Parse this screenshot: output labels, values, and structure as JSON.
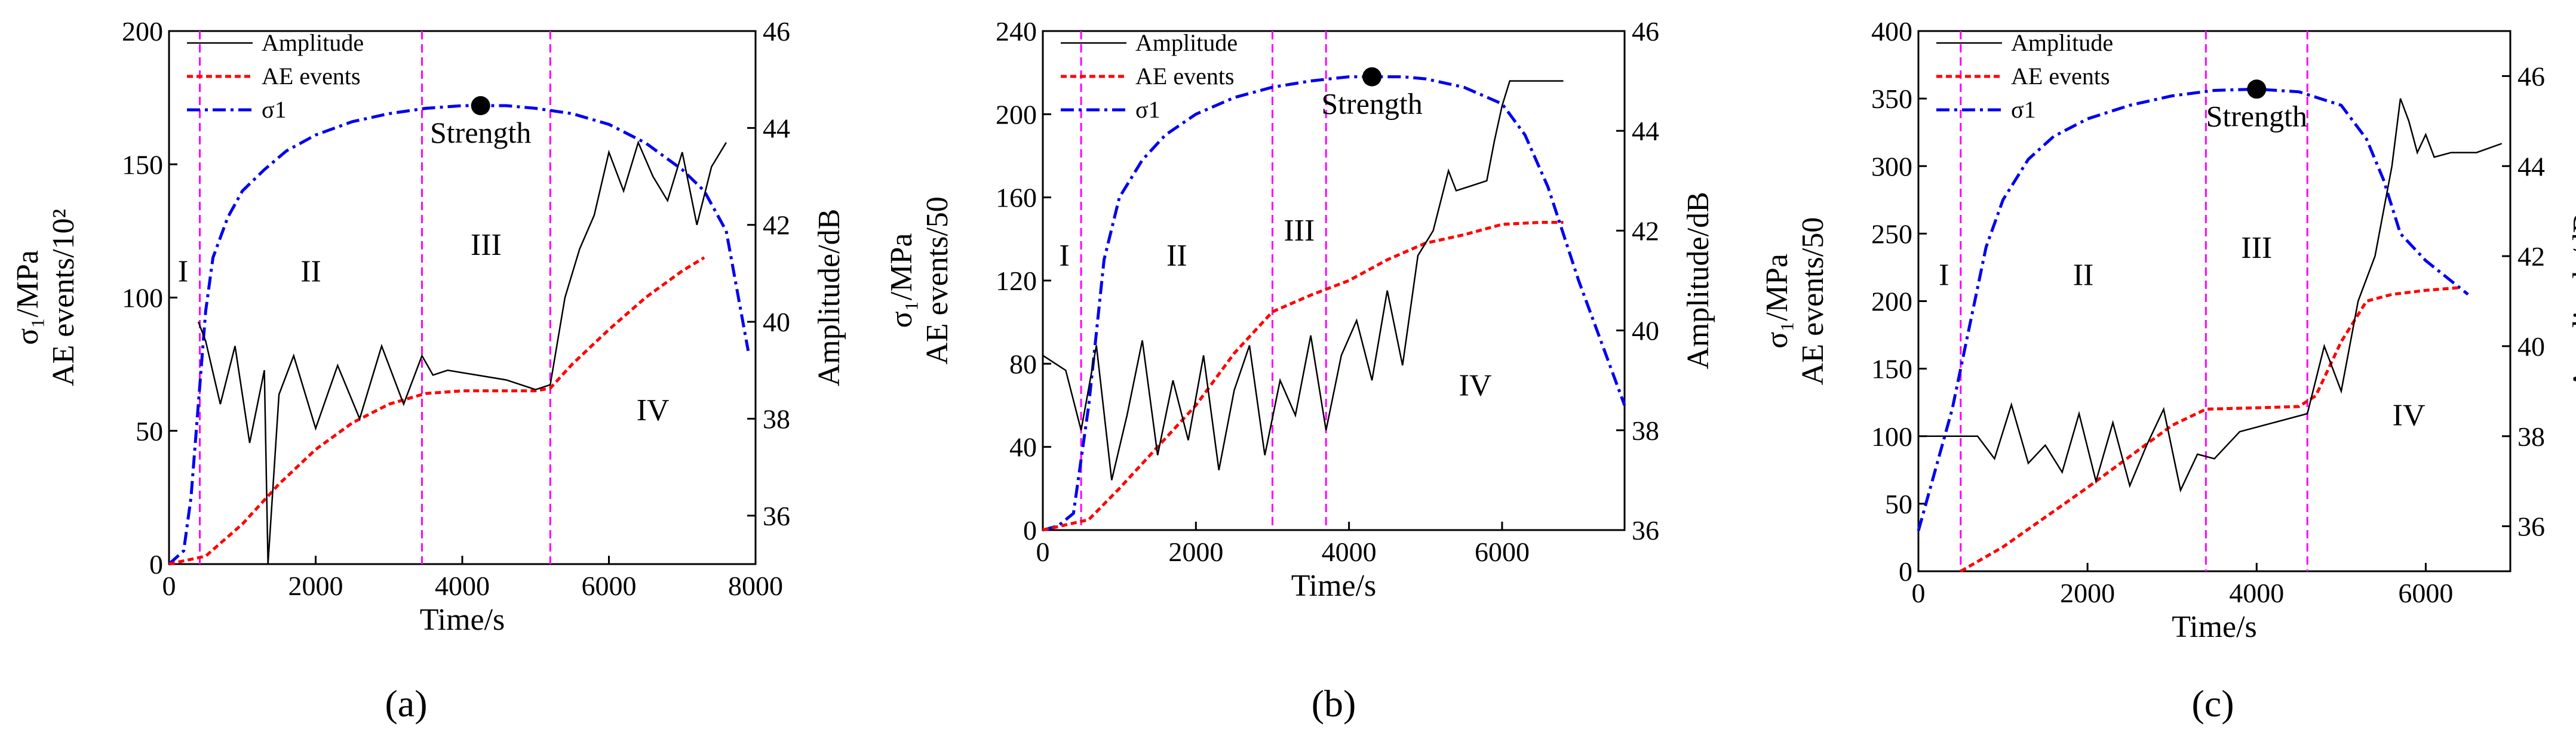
{
  "chart_data": [
    {
      "type": "line",
      "panel": "a",
      "caption": "(a)",
      "xlabel": "Time/s",
      "ylabel_line1": "σ₁/MPa",
      "ylabel_line2": "AE events/10²",
      "y2label": "Amplitude/dB",
      "xlim": [
        0,
        8000
      ],
      "ylim": [
        0,
        200
      ],
      "y2lim": [
        35,
        46
      ],
      "xticks": [
        0,
        2000,
        4000,
        6000,
        8000
      ],
      "yticks": [
        0,
        50,
        100,
        150,
        200
      ],
      "y2ticks": [
        36,
        38,
        40,
        42,
        44,
        46
      ],
      "legend": [
        "Amplitude",
        "AE events",
        "σ1"
      ],
      "stage_labels": [
        "I",
        "II",
        "III",
        "IV"
      ],
      "stage_boundaries": [
        420,
        3450,
        5200
      ],
      "strength_label": "Strength",
      "strength_point": {
        "x": 4250,
        "y": 172
      },
      "series": [
        {
          "name": "σ1",
          "axis": "left",
          "x": [
            0,
            200,
            300,
            400,
            500,
            600,
            800,
            1000,
            1300,
            1600,
            2000,
            2500,
            3000,
            3500,
            4000,
            4250,
            4600,
            5000,
            5500,
            6000,
            6500,
            7000,
            7300,
            7600,
            7900
          ],
          "y": [
            0,
            5,
            25,
            60,
            95,
            115,
            130,
            140,
            148,
            155,
            161,
            166,
            169,
            171,
            172,
            172,
            172,
            171,
            169,
            165,
            158,
            148,
            140,
            125,
            80
          ]
        },
        {
          "name": "AE events",
          "axis": "left",
          "x": [
            0,
            500,
            1000,
            1500,
            2000,
            2500,
            3000,
            3500,
            4000,
            4500,
            5000,
            5200,
            5500,
            6000,
            6500,
            7000,
            7300
          ],
          "y": [
            0,
            3,
            15,
            30,
            43,
            53,
            60,
            64,
            65,
            65,
            65,
            66,
            75,
            88,
            100,
            110,
            115
          ]
        },
        {
          "name": "Amplitude",
          "axis": "right",
          "x": [
            400,
            500,
            700,
            900,
            1100,
            1300,
            1350,
            1500,
            1700,
            2000,
            2300,
            2600,
            2900,
            3200,
            3450,
            3600,
            3800,
            4200,
            4600,
            5000,
            5200,
            5400,
            5600,
            5800,
            6000,
            6200,
            6400,
            6600,
            6800,
            7000,
            7200,
            7400,
            7600
          ],
          "y": [
            40,
            39.6,
            38.3,
            39.5,
            37.5,
            39,
            35,
            38.5,
            39.3,
            37.8,
            39.1,
            38.0,
            39.5,
            38.3,
            39.3,
            38.9,
            39.0,
            38.9,
            38.8,
            38.6,
            38.7,
            40.5,
            41.5,
            42.2,
            43.5,
            42.7,
            43.7,
            43.0,
            42.5,
            43.5,
            42.0,
            43.2,
            43.7
          ]
        }
      ]
    },
    {
      "type": "line",
      "panel": "b",
      "caption": "(b)",
      "xlabel": "Time/s",
      "ylabel_line1": "σ₁/MPa",
      "ylabel_line2": "AE events/50",
      "y2label": "Amplitude/dB",
      "xlim": [
        0,
        7600
      ],
      "ylim": [
        0,
        240
      ],
      "y2lim": [
        36,
        46
      ],
      "xticks": [
        0,
        2000,
        4000,
        6000
      ],
      "yticks": [
        0,
        40,
        80,
        120,
        160,
        200,
        240
      ],
      "y2ticks": [
        36,
        38,
        40,
        42,
        44,
        46
      ],
      "legend": [
        "Amplitude",
        "AE events",
        "σ1"
      ],
      "stage_labels": [
        "I",
        "II",
        "III",
        "IV"
      ],
      "stage_boundaries": [
        500,
        3000,
        3700
      ],
      "strength_label": "Strength",
      "strength_point": {
        "x": 4300,
        "y": 218
      },
      "series": [
        {
          "name": "σ1",
          "axis": "left",
          "x": [
            0,
            200,
            400,
            600,
            800,
            1000,
            1300,
            1600,
            2000,
            2500,
            3000,
            3500,
            4000,
            4300,
            4700,
            5000,
            5500,
            6000,
            6300,
            6600,
            7000,
            7300,
            7600
          ],
          "y": [
            0,
            2,
            8,
            60,
            130,
            160,
            178,
            190,
            200,
            208,
            213,
            216,
            218,
            218,
            218,
            217,
            213,
            205,
            190,
            165,
            120,
            90,
            60
          ]
        },
        {
          "name": "AE events",
          "axis": "left",
          "x": [
            0,
            600,
            1000,
            1500,
            2000,
            2500,
            3000,
            3500,
            4000,
            4500,
            5000,
            5500,
            6000,
            6500,
            6800
          ],
          "y": [
            0,
            5,
            20,
            40,
            60,
            85,
            105,
            113,
            120,
            130,
            138,
            142,
            147,
            148,
            148
          ]
        },
        {
          "name": "Amplitude",
          "axis": "right",
          "x": [
            0,
            300,
            500,
            700,
            900,
            1100,
            1300,
            1500,
            1700,
            1900,
            2100,
            2300,
            2500,
            2700,
            2900,
            3100,
            3300,
            3500,
            3700,
            3900,
            4100,
            4300,
            4500,
            4700,
            4900,
            5100,
            5300,
            5400,
            5600,
            5800,
            5900,
            6000,
            6100,
            6300,
            6500,
            6800
          ],
          "y": [
            39.5,
            39.2,
            38.0,
            39.7,
            37.0,
            38.3,
            39.8,
            37.5,
            39.0,
            37.8,
            39.5,
            37.2,
            38.8,
            39.7,
            37.5,
            39.0,
            38.3,
            39.9,
            38.0,
            39.5,
            40.2,
            39.0,
            40.8,
            39.3,
            41.5,
            42.0,
            43.2,
            42.8,
            42.9,
            43.0,
            43.8,
            44.5,
            45.0,
            45.0,
            45.0,
            45.0
          ]
        }
      ]
    },
    {
      "type": "line",
      "panel": "c",
      "caption": "(c)",
      "xlabel": "Time/s",
      "ylabel_line1": "σ₁/MPa",
      "ylabel_line2": "AE events/50",
      "y2label": "Amplitude/dB",
      "xlim": [
        0,
        7000
      ],
      "ylim": [
        0,
        400
      ],
      "y2lim": [
        35,
        47
      ],
      "xticks": [
        0,
        2000,
        4000,
        6000
      ],
      "yticks": [
        0,
        50,
        100,
        150,
        200,
        250,
        300,
        350,
        400
      ],
      "y2ticks": [
        36,
        38,
        40,
        42,
        44,
        46
      ],
      "legend": [
        "Amplitude",
        "AE events",
        "σ1"
      ],
      "stage_labels": [
        "I",
        "II",
        "III",
        "IV"
      ],
      "stage_boundaries": [
        500,
        3400,
        4600
      ],
      "strength_label": "Strength",
      "strength_point": {
        "x": 4000,
        "y": 357
      },
      "series": [
        {
          "name": "σ1",
          "axis": "left",
          "x": [
            0,
            200,
            400,
            600,
            800,
            1000,
            1300,
            1600,
            2000,
            2500,
            3000,
            3500,
            4000,
            4500,
            5000,
            5300,
            5500,
            5700,
            6000,
            6300,
            6500
          ],
          "y": [
            30,
            75,
            120,
            180,
            240,
            275,
            305,
            322,
            335,
            345,
            352,
            356,
            357,
            355,
            345,
            320,
            290,
            250,
            230,
            215,
            205
          ]
        },
        {
          "name": "AE events",
          "axis": "left",
          "x": [
            500,
            1000,
            1500,
            2000,
            2500,
            3000,
            3400,
            4000,
            4500,
            4700,
            5000,
            5300,
            5600,
            6000,
            6400
          ],
          "y": [
            0,
            18,
            40,
            62,
            85,
            108,
            120,
            121,
            122,
            130,
            170,
            200,
            205,
            208,
            210
          ]
        },
        {
          "name": "Amplitude",
          "axis": "right",
          "x": [
            0,
            400,
            700,
            900,
            1100,
            1300,
            1500,
            1700,
            1900,
            2100,
            2300,
            2500,
            2700,
            2900,
            3100,
            3300,
            3500,
            3800,
            4200,
            4600,
            4800,
            5000,
            5200,
            5400,
            5600,
            5700,
            5800,
            5900,
            6000,
            6100,
            6300,
            6600,
            6900
          ],
          "y": [
            38,
            38,
            38,
            37.5,
            38.7,
            37.4,
            37.8,
            37.2,
            38.5,
            37.0,
            38.3,
            36.9,
            37.8,
            38.6,
            36.8,
            37.6,
            37.5,
            38.1,
            38.3,
            38.5,
            40.0,
            39.0,
            41.0,
            42.0,
            44.0,
            45.5,
            45.0,
            44.3,
            44.7,
            44.2,
            44.3,
            44.3,
            44.5
          ]
        }
      ]
    }
  ]
}
